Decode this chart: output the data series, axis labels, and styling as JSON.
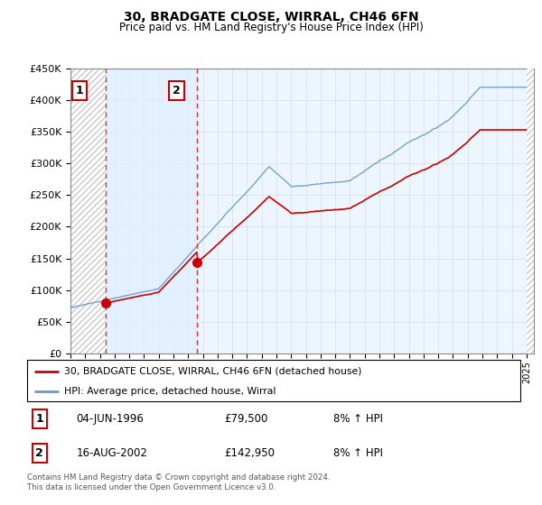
{
  "title": "30, BRADGATE CLOSE, WIRRAL, CH46 6FN",
  "subtitle": "Price paid vs. HM Land Registry's House Price Index (HPI)",
  "ytick_values": [
    0,
    50000,
    100000,
    150000,
    200000,
    250000,
    300000,
    350000,
    400000,
    450000
  ],
  "ylim": [
    0,
    450000
  ],
  "xlim_start": 1994.0,
  "xlim_end": 2025.5,
  "purchase1_date": 1996.42,
  "purchase1_price": 79500,
  "purchase2_date": 2002.62,
  "purchase2_price": 142950,
  "legend_label_red": "30, BRADGATE CLOSE, WIRRAL, CH46 6FN (detached house)",
  "legend_label_blue": "HPI: Average price, detached house, Wirral",
  "annotation1_label": "1",
  "annotation1_date": "04-JUN-1996",
  "annotation1_price": "£79,500",
  "annotation1_hpi": "8% ↑ HPI",
  "annotation2_label": "2",
  "annotation2_date": "16-AUG-2002",
  "annotation2_price": "£142,950",
  "annotation2_hpi": "8% ↑ HPI",
  "footer": "Contains HM Land Registry data © Crown copyright and database right 2024.\nThis data is licensed under the Open Government Licence v3.0.",
  "grid_color": "#cccccc",
  "red_line_color": "#cc0000",
  "blue_line_color": "#6699cc",
  "highlight_bg": "#ddeeff",
  "dashed_line_color": "#dd3333"
}
